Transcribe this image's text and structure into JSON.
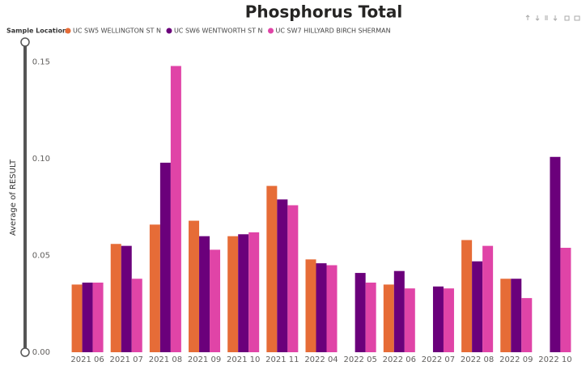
{
  "chart_data": {
    "type": "bar",
    "title": "Phosphorus Total",
    "legend_title": "Sample Location",
    "y_label": "Average of RESULT",
    "categories": [
      "2021 06",
      "2021 07",
      "2021 08",
      "2021 09",
      "2021 10",
      "2021 11",
      "2022 04",
      "2022 05",
      "2022 06",
      "2022 07",
      "2022 08",
      "2022 09",
      "2022 10"
    ],
    "series": [
      {
        "name": "UC SW5 WELLINGTON ST N",
        "color": "#e66c37",
        "values": [
          0.035,
          0.056,
          0.066,
          0.068,
          0.06,
          0.086,
          0.048,
          null,
          0.035,
          null,
          0.058,
          0.038,
          null
        ]
      },
      {
        "name": "UC SW6 WENTWORTH ST N",
        "color": "#6b007b",
        "values": [
          0.036,
          0.055,
          0.098,
          0.06,
          0.061,
          0.079,
          0.046,
          0.041,
          0.042,
          0.034,
          0.047,
          0.038,
          0.101
        ]
      },
      {
        "name": "UC SW7 HILLYARD BIRCH SHERMAN",
        "color": "#e044a7",
        "values": [
          0.036,
          0.038,
          0.148,
          0.053,
          0.062,
          0.076,
          0.045,
          0.036,
          0.033,
          0.033,
          0.055,
          0.028,
          0.054
        ]
      }
    ],
    "ylim": [
      0,
      0.157
    ],
    "yticks": [
      {
        "value": 0,
        "label": "0.00"
      },
      0.05,
      {
        "value": 0.1,
        "label": "0.10"
      },
      0.15
    ],
    "grid": false,
    "legend": "top-left"
  }
}
